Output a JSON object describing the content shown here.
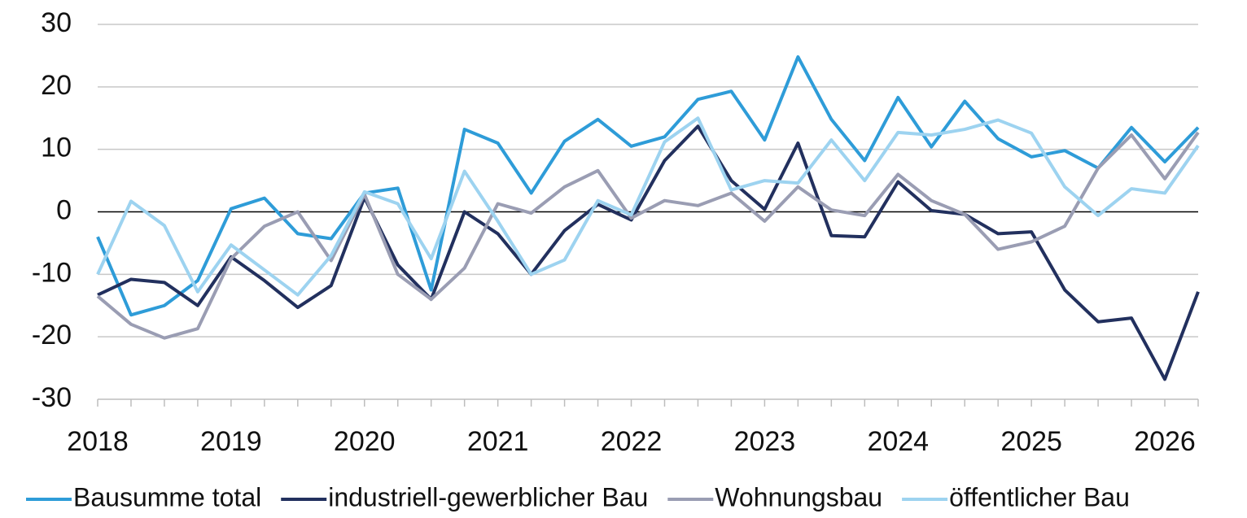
{
  "chart_data": {
    "type": "line",
    "categories": [
      "2018",
      null,
      null,
      null,
      "2019",
      null,
      null,
      null,
      "2020",
      null,
      null,
      null,
      "2021",
      null,
      null,
      null,
      "2022",
      null,
      null,
      null,
      "2023",
      null,
      null,
      null,
      "2024",
      null,
      null,
      null,
      "2025",
      null,
      null,
      null,
      "2026",
      null
    ],
    "series": [
      {
        "name": "Bausumme total",
        "color": "#2e9cd8",
        "values": [
          -4,
          -16.5,
          -15,
          -11,
          0.5,
          2.2,
          -3.5,
          -4.3,
          3,
          3.8,
          -12.5,
          13.2,
          11,
          3,
          11.3,
          14.8,
          10.5,
          12,
          18,
          19.3,
          11.5,
          24.8,
          14.8,
          8.2,
          18.3,
          10.4,
          17.7,
          11.7,
          8.8,
          9.8,
          7,
          13.5,
          8,
          13.5
        ]
      },
      {
        "name": "industriell-gewerblicher Bau",
        "color": "#22305e",
        "values": [
          -13.3,
          -10.8,
          -11.3,
          -15,
          -7.2,
          -11,
          -15.3,
          -11.8,
          2.3,
          -8.5,
          -14,
          0,
          -3.5,
          -10,
          -3,
          1.2,
          -1.3,
          8.2,
          13.7,
          5,
          0.4,
          11,
          -3.8,
          -4,
          4.8,
          0.2,
          -0.4,
          -3.5,
          -3.2,
          -12.5,
          -17.6,
          -17,
          -26.8,
          -12.8
        ]
      },
      {
        "name": "Wohnungsbau",
        "color": "#9a9db3",
        "values": [
          -13.5,
          -18,
          -20.2,
          -18.7,
          -7.5,
          -2.3,
          0,
          -7.8,
          2.8,
          -10,
          -14,
          -9,
          1.3,
          -0.2,
          4,
          6.6,
          -1,
          1.8,
          1,
          3,
          -1.5,
          4,
          0.3,
          -0.6,
          6,
          1.8,
          -0.4,
          -6,
          -4.8,
          -2.3,
          7,
          12.3,
          5.3,
          12.7
        ]
      },
      {
        "name": "öffentlicher Bau",
        "color": "#9dd3f0",
        "values": [
          -10,
          1.7,
          -2.2,
          -12.8,
          -5.3,
          -9.3,
          -13.3,
          -7,
          3.2,
          1.3,
          -7.5,
          6.5,
          -1.5,
          -10,
          -7.7,
          1.8,
          -0.5,
          11.2,
          15,
          3.5,
          5,
          4.6,
          11.5,
          5,
          12.7,
          12.3,
          13.2,
          14.7,
          12.6,
          4,
          -0.6,
          3.7,
          3,
          10.6
        ]
      }
    ],
    "ylim": [
      -30,
      30
    ],
    "yticks": [
      -30,
      -20,
      -10,
      0,
      10,
      20,
      30
    ],
    "grid": true,
    "legend": "bottom"
  }
}
